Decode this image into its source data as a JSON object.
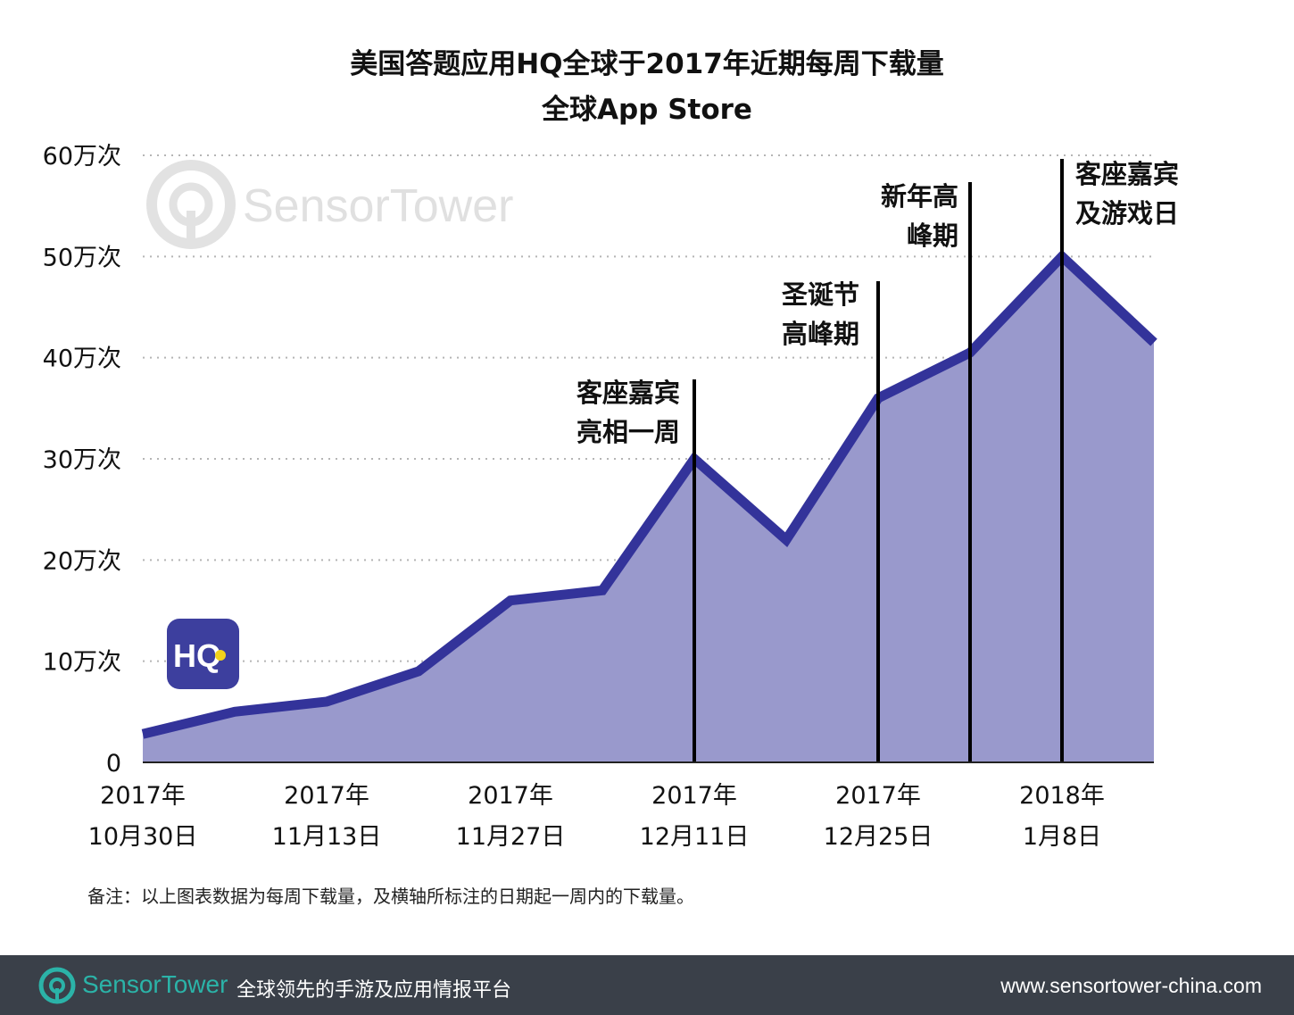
{
  "title": "美国答题应用HQ全球于2017年近期每周下载量",
  "subtitle": "全球App Store",
  "watermark": "SensorTower",
  "app_icon_label": "HQ",
  "footnote": "备注：以上图表数据为每周下载量，及横轴所标注的日期起一周内的下载量。",
  "footer": {
    "brand": "SensorTower",
    "tagline": "全球领先的手游及应用情报平台",
    "url": "www.sensortower-china.com"
  },
  "colors": {
    "area_fill": "#9999cc",
    "line": "#33339a",
    "footer_bg": "#3a4049",
    "brand": "#2bb3a8",
    "app_icon_bg": "#3d3f9e"
  },
  "chart_data": {
    "type": "area",
    "title": "美国答题应用HQ全球于2017年近期每周下载量",
    "subtitle": "全球App Store",
    "x": [
      "2017-10-30",
      "2017-11-06",
      "2017-11-13",
      "2017-11-20",
      "2017-11-27",
      "2017-12-04",
      "2017-12-11",
      "2017-12-18",
      "2017-12-25",
      "2018-01-01",
      "2018-01-08",
      "2018-01-15"
    ],
    "values": [
      28000,
      50000,
      60000,
      90000,
      160000,
      170000,
      300000,
      220000,
      360000,
      405000,
      500000,
      415000
    ],
    "x_tick_labels": [
      {
        "year": "2017年",
        "date": "10月30日"
      },
      {
        "year": "2017年",
        "date": "11月13日"
      },
      {
        "year": "2017年",
        "date": "11月27日"
      },
      {
        "year": "2017年",
        "date": "12月11日"
      },
      {
        "year": "2017年",
        "date": "12月25日"
      },
      {
        "year": "2018年",
        "date": "1月8日"
      }
    ],
    "x_tick_indices": [
      0,
      2,
      4,
      6,
      8,
      10
    ],
    "y_ticks": [
      "0",
      "10万次",
      "20万次",
      "30万次",
      "40万次",
      "50万次",
      "60万次"
    ],
    "ylim": [
      0,
      600000
    ],
    "grid": true,
    "annotations": [
      {
        "index": 6,
        "lines": [
          "客座嘉宾",
          "亮相一周"
        ]
      },
      {
        "index": 8,
        "lines": [
          "圣诞节",
          "高峰期"
        ]
      },
      {
        "index": 9,
        "lines": [
          "新年高",
          "峰期"
        ]
      },
      {
        "index": 10,
        "lines": [
          "客座嘉宾",
          "及游戏日"
        ]
      }
    ]
  }
}
